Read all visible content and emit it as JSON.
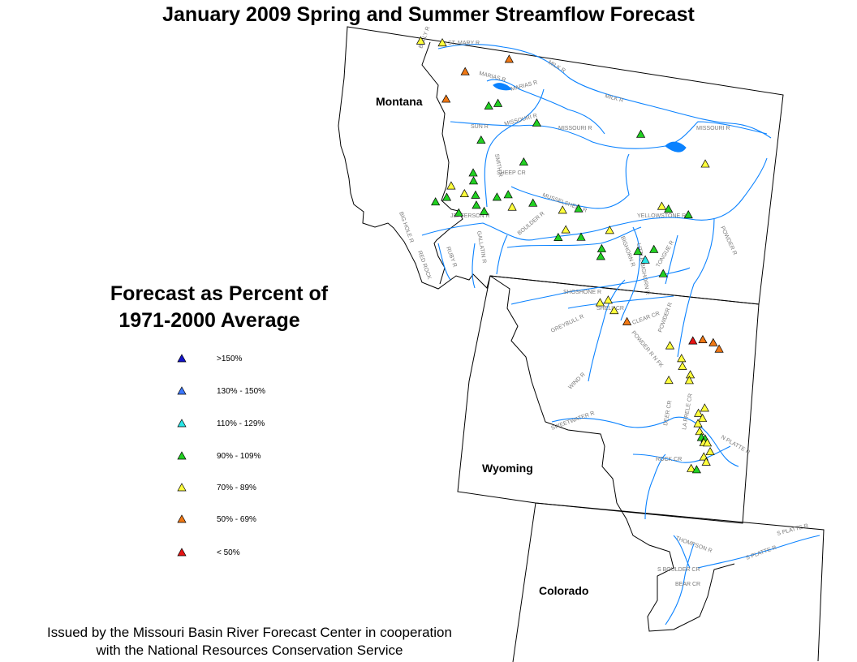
{
  "title": "January 2009 Spring and Summer Streamflow Forecast",
  "legend": {
    "title_line1": "Forecast as Percent of",
    "title_line2": "1971-2000 Average",
    "items": [
      {
        "label": ">150%",
        "color": "#1414c8"
      },
      {
        "label": "130% - 150%",
        "color": "#3c78ff"
      },
      {
        "label": "110% - 129%",
        "color": "#28e6e6"
      },
      {
        "label": "90% - 109%",
        "color": "#22d022"
      },
      {
        "label": "70% - 89%",
        "color": "#ffff3c"
      },
      {
        "label": "50% - 69%",
        "color": "#f07814"
      },
      {
        "label": "< 50%",
        "color": "#e61414"
      }
    ]
  },
  "states": {
    "montana": "Montana",
    "wyoming": "Wyoming",
    "colorado": "Colorado"
  },
  "footer": {
    "line1": "Issued by the Missouri Basin River Forecast Center in cooperation",
    "line2": "with the National Resources Conservation Service"
  },
  "river_labels": [
    "BELLY R",
    "ST. MARY R",
    "MILK R",
    "MARIAS R",
    "MARIAS R",
    "MILK R",
    "SUN R",
    "MISSOURI R",
    "MISSOURI R",
    "MISSOURI R",
    "SMITH R",
    "SHEEP CR",
    "MUSSELSHELL R",
    "BIG HOLE R",
    "JEFFERSON R",
    "RUBY R",
    "GALLATIN R",
    "BOULDER R",
    "YELLOWSTONE R",
    "POWDER R",
    "BIGHORN R",
    "LITTLE BIGHORN R",
    "TONGUE R",
    "RED ROCK",
    "SHOSHONE R",
    "SHELL CR",
    "GREYBULL R",
    "CLEAR CR",
    "POWDER R",
    "POWDER R N FK",
    "WIND R",
    "SWEETWATER R",
    "DEER CR",
    "LA PRELE CR",
    "N PLATTE R",
    "ROCK CR",
    "THOMPSON R",
    "S PLATTE R",
    "S PLATTE R",
    "S BOULDER CR",
    "BEAR CR"
  ],
  "stations": [
    {
      "lon": -113.6,
      "lat": 48.95,
      "cat": "70% - 89%"
    },
    {
      "lon": -112.9,
      "lat": 48.99,
      "cat": "70% - 89%"
    },
    {
      "lon": -110.75,
      "lat": 48.85,
      "cat": "50% - 69%"
    },
    {
      "lon": -112.2,
      "lat": 48.36,
      "cat": "50% - 69%"
    },
    {
      "lon": -112.85,
      "lat": 47.6,
      "cat": "50% - 69%"
    },
    {
      "lon": -111.5,
      "lat": 47.59,
      "cat": "90% - 109%"
    },
    {
      "lon": -111.2,
      "lat": 47.69,
      "cat": "90% - 109%"
    },
    {
      "lon": -110.0,
      "lat": 47.34,
      "cat": "90% - 109%"
    },
    {
      "lon": -106.7,
      "lat": 47.45,
      "cat": "90% - 109%"
    },
    {
      "lon": -104.75,
      "lat": 46.92,
      "cat": "70% - 89%"
    },
    {
      "lon": -111.8,
      "lat": 46.7,
      "cat": "90% - 109%"
    },
    {
      "lon": -110.5,
      "lat": 46.3,
      "cat": "90% - 109%"
    },
    {
      "lon": -112.1,
      "lat": 45.85,
      "cat": "90% - 109%"
    },
    {
      "lon": -112.1,
      "lat": 45.65,
      "cat": "90% - 109%"
    },
    {
      "lon": -112.8,
      "lat": 45.45,
      "cat": "70% - 89%"
    },
    {
      "lon": -112.4,
      "lat": 45.3,
      "cat": "70% - 89%"
    },
    {
      "lon": -112.06,
      "lat": 45.3,
      "cat": "90% - 109%"
    },
    {
      "lon": -111.4,
      "lat": 45.32,
      "cat": "90% - 109%"
    },
    {
      "lon": -111.05,
      "lat": 45.42,
      "cat": "90% - 109%"
    },
    {
      "lon": -110.3,
      "lat": 45.29,
      "cat": "90% - 109%"
    },
    {
      "lon": -110.95,
      "lat": 45.12,
      "cat": "70% - 89%"
    },
    {
      "lon": -109.4,
      "lat": 45.21,
      "cat": "70% - 89%"
    },
    {
      "lon": -108.9,
      "lat": 45.3,
      "cat": "90% - 109%"
    },
    {
      "lon": -106.3,
      "lat": 45.65,
      "cat": "70% - 89%"
    },
    {
      "lon": -106.1,
      "lat": 45.6,
      "cat": "90% - 109%"
    },
    {
      "lon": -105.5,
      "lat": 45.52,
      "cat": "90% - 109%"
    },
    {
      "lon": -113.3,
      "lat": 45.0,
      "cat": "90% - 109%"
    },
    {
      "lon": -112.95,
      "lat": 45.15,
      "cat": "90% - 109%"
    },
    {
      "lon": -112.6,
      "lat": 44.8,
      "cat": "90% - 109%"
    },
    {
      "lon": -112.05,
      "lat": 45.05,
      "cat": "90% - 109%"
    },
    {
      "lon": -111.82,
      "lat": 44.92,
      "cat": "90% - 109%"
    },
    {
      "lon": -108.0,
      "lat": 44.85,
      "cat": "70% - 89%"
    },
    {
      "lon": -109.35,
      "lat": 44.72,
      "cat": "70% - 89%"
    },
    {
      "lon": -109.6,
      "lat": 44.5,
      "cat": "90% - 109%"
    },
    {
      "lon": -108.9,
      "lat": 44.58,
      "cat": "90% - 109%"
    },
    {
      "lon": -108.3,
      "lat": 44.35,
      "cat": "90% - 109%"
    },
    {
      "lon": -108.35,
      "lat": 44.15,
      "cat": "90% - 109%"
    },
    {
      "lon": -107.2,
      "lat": 44.4,
      "cat": "90% - 109%"
    },
    {
      "lon": -106.7,
      "lat": 44.5,
      "cat": "90% - 109%"
    },
    {
      "lon": -107.0,
      "lat": 44.2,
      "cat": "110% - 129%"
    },
    {
      "lon": -106.5,
      "lat": 43.9,
      "cat": "90% - 109%"
    },
    {
      "lon": -108.5,
      "lat": 42.96,
      "cat": "70% - 89%"
    },
    {
      "lon": -108.25,
      "lat": 43.05,
      "cat": "70% - 89%"
    },
    {
      "lon": -108.1,
      "lat": 42.8,
      "cat": "70% - 89%"
    },
    {
      "lon": -107.75,
      "lat": 42.55,
      "cat": "50% - 69%"
    },
    {
      "lon": -105.55,
      "lat": 42.3,
      "cat": "50% - 69%"
    },
    {
      "lon": -105.25,
      "lat": 42.25,
      "cat": "50% - 69%"
    },
    {
      "lon": -105.85,
      "lat": 42.24,
      "cat": "< 50%"
    },
    {
      "lon": -105.1,
      "lat": 42.1,
      "cat": "50% - 69%"
    },
    {
      "lon": -106.55,
      "lat": 42.05,
      "cat": "70% - 89%"
    },
    {
      "lon": -106.25,
      "lat": 41.75,
      "cat": "70% - 89%"
    },
    {
      "lon": -106.25,
      "lat": 41.55,
      "cat": "70% - 89%"
    },
    {
      "lon": -106.05,
      "lat": 41.35,
      "cat": "70% - 89%"
    },
    {
      "lon": -106.1,
      "lat": 41.2,
      "cat": "70% - 89%"
    },
    {
      "lon": -106.7,
      "lat": 41.15,
      "cat": "70% - 89%"
    },
    {
      "lon": -105.75,
      "lat": 40.52,
      "cat": "70% - 89%"
    },
    {
      "lon": -105.95,
      "lat": 40.37,
      "cat": "70% - 89%"
    },
    {
      "lon": -105.85,
      "lat": 40.25,
      "cat": "70% - 89%"
    },
    {
      "lon": -106.0,
      "lat": 40.1,
      "cat": "70% - 89%"
    },
    {
      "lon": -105.98,
      "lat": 39.9,
      "cat": "70% - 89%"
    },
    {
      "lon": -105.95,
      "lat": 39.75,
      "cat": "90% - 109%"
    },
    {
      "lon": -105.85,
      "lat": 39.72,
      "cat": "90% - 109%"
    },
    {
      "lon": -105.9,
      "lat": 39.62,
      "cat": "70% - 89%"
    },
    {
      "lon": -105.8,
      "lat": 39.62,
      "cat": "70% - 89%"
    },
    {
      "lon": -105.75,
      "lat": 39.4,
      "cat": "70% - 89%"
    },
    {
      "lon": -105.95,
      "lat": 39.25,
      "cat": "70% - 89%"
    },
    {
      "lon": -105.9,
      "lat": 39.12,
      "cat": "70% - 89%"
    },
    {
      "lon": -106.35,
      "lat": 38.92,
      "cat": "70% - 89%"
    },
    {
      "lon": -106.2,
      "lat": 38.9,
      "cat": "90% - 109%"
    }
  ]
}
